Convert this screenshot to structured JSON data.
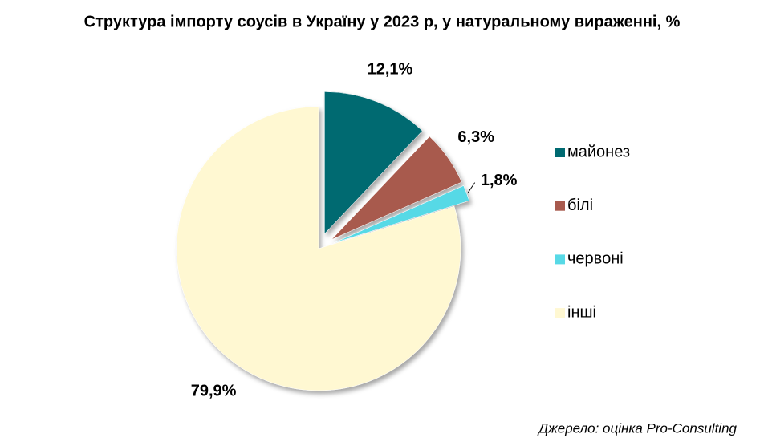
{
  "chart_data": {
    "type": "pie",
    "title": "Структура імпорту соусів в Україну у 2023 р, у натуральному вираженні, %",
    "categories": [
      "майонез",
      "білі",
      "червоні",
      "інші"
    ],
    "values": [
      12.1,
      6.3,
      1.8,
      79.9
    ],
    "value_labels": [
      "12,1%",
      "6,3%",
      "1,8%",
      "79,9%"
    ],
    "colors": [
      "#006a71",
      "#a85a4e",
      "#57d9e6",
      "#fff8d2"
    ],
    "legend": "right",
    "source": "Джерело: оцінка Pro-Consulting"
  }
}
